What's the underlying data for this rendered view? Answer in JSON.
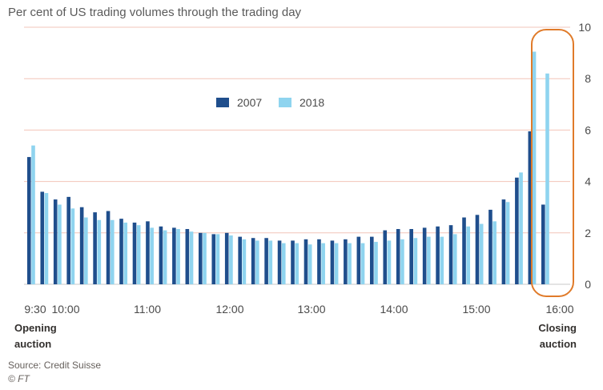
{
  "chart_data": {
    "type": "bar",
    "title": "Per cent of US trading volumes through the trading day",
    "ylim": [
      0,
      10
    ],
    "y_ticks": [
      "0",
      "2",
      "4",
      "6",
      "8",
      "10"
    ],
    "x_tick_labels": [
      "9:30",
      "10:00",
      "11:00",
      "12:00",
      "13:00",
      "14:00",
      "15:00",
      "16:00"
    ],
    "grid": true,
    "legend_position": "top-center",
    "series": [
      {
        "name": "2007",
        "color": "#1f4e8c",
        "values": [
          4.95,
          3.6,
          3.3,
          3.4,
          3.0,
          2.8,
          2.85,
          2.55,
          2.4,
          2.45,
          2.25,
          2.2,
          2.15,
          2.0,
          1.95,
          2.0,
          1.85,
          1.8,
          1.8,
          1.7,
          1.7,
          1.75,
          1.75,
          1.7,
          1.75,
          1.85,
          1.85,
          2.1,
          2.15,
          2.15,
          2.2,
          2.25,
          2.3,
          2.6,
          2.7,
          2.9,
          3.3,
          4.15,
          5.95,
          3.1
        ]
      },
      {
        "name": "2018",
        "color": "#8fd4ef",
        "values": [
          5.4,
          3.55,
          3.1,
          2.95,
          2.6,
          2.5,
          2.5,
          2.4,
          2.3,
          2.2,
          2.1,
          2.15,
          2.05,
          2.0,
          1.95,
          1.9,
          1.75,
          1.7,
          1.7,
          1.6,
          1.6,
          1.55,
          1.6,
          1.6,
          1.6,
          1.6,
          1.65,
          1.7,
          1.75,
          1.8,
          1.85,
          1.85,
          1.95,
          2.25,
          2.35,
          2.45,
          3.2,
          4.35,
          9.05,
          8.2
        ]
      }
    ],
    "annotations": {
      "opening": "Opening auction",
      "closing": "Closing auction",
      "highlight_color": "#e07b2a"
    }
  },
  "footer": {
    "source": "Source: Credit Suisse",
    "copyright": "© FT"
  },
  "colors": {
    "grid": "#f2c5b8",
    "baseline": "#c9c9c9",
    "highlight": "#e07b2a"
  }
}
